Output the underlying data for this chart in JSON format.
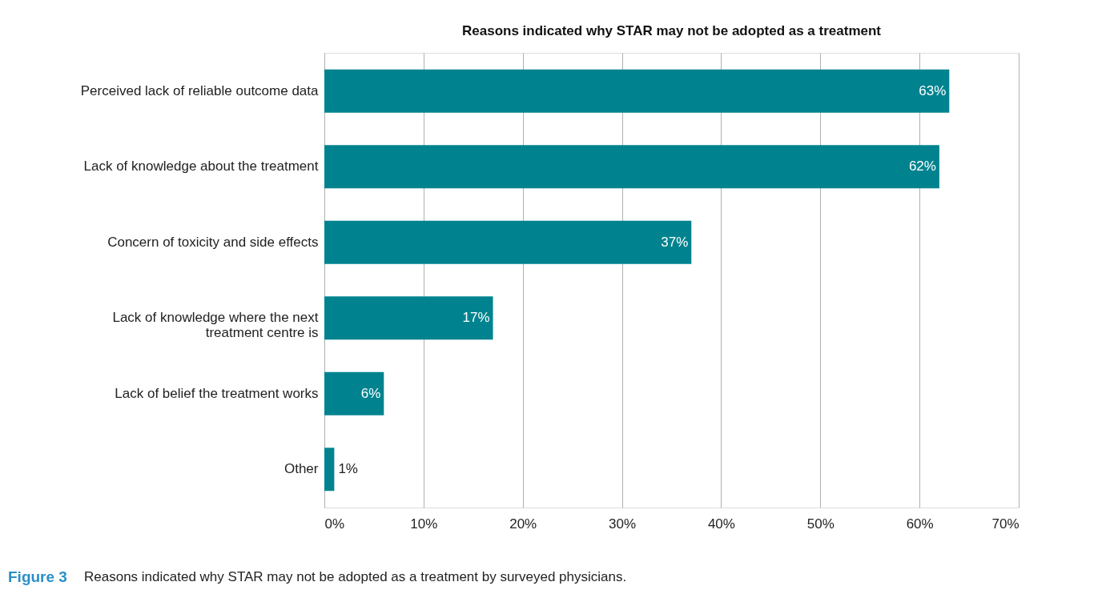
{
  "chart_data": {
    "type": "bar",
    "orientation": "horizontal",
    "title": "Reasons indicated why STAR may not be adopted as a treatment",
    "categories": [
      "Perceived lack of reliable outcome data",
      "Lack of knowledge about the treatment",
      "Concern of toxicity and side effects",
      "Lack of knowledge where the next\ntreatment centre is",
      "Lack of belief the treatment works",
      "Other"
    ],
    "values": [
      63,
      62,
      37,
      17,
      6,
      1
    ],
    "color": "#00838f",
    "xlim": [
      0,
      70
    ],
    "xticks": [
      {
        "value": 0,
        "label": "0%"
      },
      {
        "value": 10,
        "label": "10%"
      },
      {
        "value": 20,
        "label": "20%"
      },
      {
        "value": 30,
        "label": "30%"
      },
      {
        "value": 40,
        "label": "40%"
      },
      {
        "value": 50,
        "label": "50%"
      },
      {
        "value": 60,
        "label": "60%"
      },
      {
        "value": 70,
        "label": "70%"
      }
    ],
    "value_labels": [
      "63%",
      "62%",
      "37%",
      "17%",
      "6%",
      "1%"
    ],
    "grid": "x",
    "annotations": [
      "Figure 3",
      "Reasons indicated why STAR may not be adopted as a treatment by surveyed physicians."
    ]
  }
}
